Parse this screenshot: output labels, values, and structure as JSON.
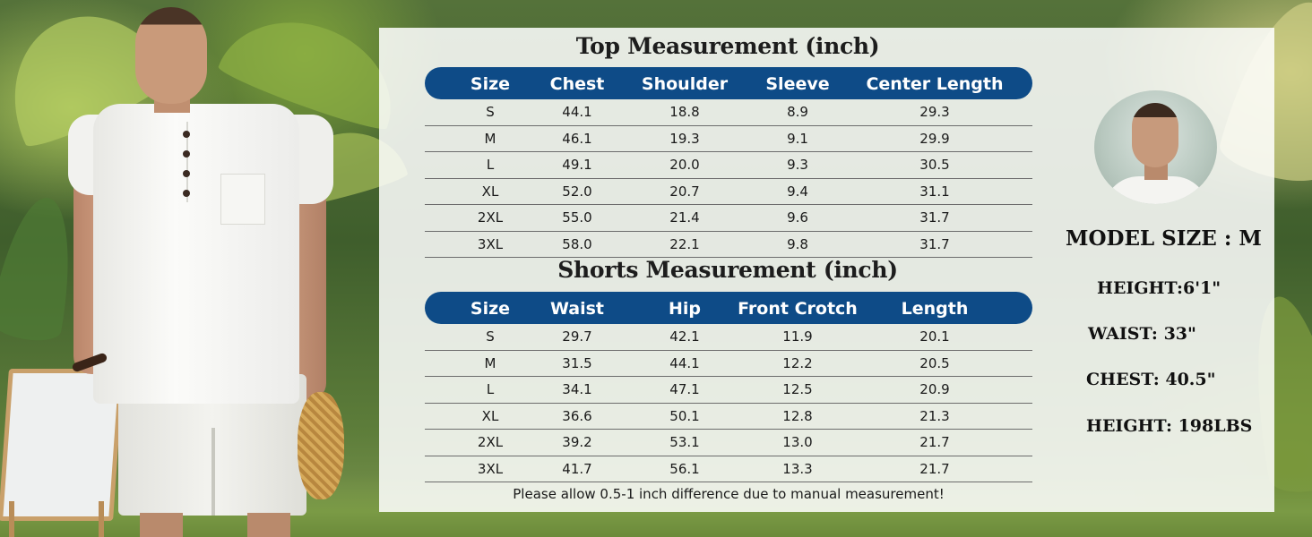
{
  "top_table": {
    "title": "Top Measurement (inch)",
    "headers": [
      "Size",
      "Chest",
      "Shoulder",
      "Sleeve",
      "Center Length"
    ],
    "rows": [
      [
        "S",
        "44.1",
        "18.8",
        "8.9",
        "29.3"
      ],
      [
        "M",
        "46.1",
        "19.3",
        "9.1",
        "29.9"
      ],
      [
        "L",
        "49.1",
        "20.0",
        "9.3",
        "30.5"
      ],
      [
        "XL",
        "52.0",
        "20.7",
        "9.4",
        "31.1"
      ],
      [
        "2XL",
        "55.0",
        "21.4",
        "9.6",
        "31.7"
      ],
      [
        "3XL",
        "58.0",
        "22.1",
        "9.8",
        "31.7"
      ]
    ]
  },
  "shorts_table": {
    "title": "Shorts Measurement (inch)",
    "headers": [
      "Size",
      "Waist",
      "Hip",
      "Front Crotch",
      "Length"
    ],
    "rows": [
      [
        "S",
        "29.7",
        "42.1",
        "11.9",
        "20.1"
      ],
      [
        "M",
        "31.5",
        "44.1",
        "12.2",
        "20.5"
      ],
      [
        "L",
        "34.1",
        "47.1",
        "12.5",
        "20.9"
      ],
      [
        "XL",
        "36.6",
        "50.1",
        "12.8",
        "21.3"
      ],
      [
        "2XL",
        "39.2",
        "53.1",
        "13.0",
        "21.7"
      ],
      [
        "3XL",
        "41.7",
        "56.1",
        "13.3",
        "21.7"
      ]
    ]
  },
  "note": "Please allow 0.5-1 inch difference due to manual measurement!",
  "model_info": {
    "size": "MODEL SIZE : M",
    "height": "HEIGHT:6'1\"",
    "waist": "WAIST: 33\"",
    "chest": "CHEST: 40.5\"",
    "weight": "HEIGHT: 198LBS"
  },
  "colors": {
    "header_bg": "#0e4b87",
    "panel_bg": "#ffffff"
  }
}
